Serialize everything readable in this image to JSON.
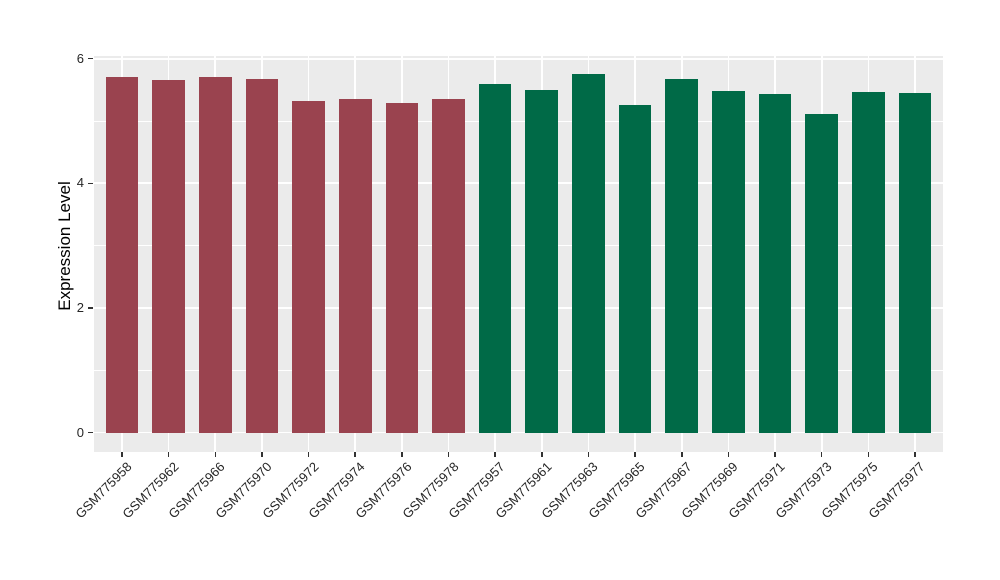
{
  "figure": {
    "background": "#FFFFFF",
    "panel_background": "#EBEBEB",
    "grid_color": "#FFFFFF",
    "tick_mark_color": "#333333",
    "axis_text_color": "#262626",
    "axis_title_color": "#000000"
  },
  "chart_data": {
    "type": "bar",
    "title": "",
    "xlabel": "",
    "ylabel": "Expression Level",
    "ylim": [
      0,
      6
    ],
    "yticks": [
      0,
      2,
      4,
      6
    ],
    "ytick_labels": [
      "0",
      "2",
      "4",
      "6"
    ],
    "minor_yticks": [
      1,
      3,
      5
    ],
    "grid": true,
    "legend_position": "none",
    "x_tick_angle": 45,
    "categories": [
      "GSM775958",
      "GSM775962",
      "GSM775966",
      "GSM775970",
      "GSM775972",
      "GSM775974",
      "GSM775976",
      "GSM775978",
      "GSM775957",
      "GSM775961",
      "GSM775963",
      "GSM775965",
      "GSM775967",
      "GSM775969",
      "GSM775971",
      "GSM775973",
      "GSM775975",
      "GSM775977"
    ],
    "values": [
      5.7,
      5.66,
      5.7,
      5.68,
      5.32,
      5.36,
      5.29,
      5.36,
      5.59,
      5.49,
      5.75,
      5.25,
      5.67,
      5.48,
      5.43,
      5.11,
      5.46,
      5.45
    ],
    "bar_colors": [
      "#9A434F",
      "#9A434F",
      "#9A434F",
      "#9A434F",
      "#9A434F",
      "#9A434F",
      "#9A434F",
      "#9A434F",
      "#006A47",
      "#006A47",
      "#006A47",
      "#006A47",
      "#006A47",
      "#006A47",
      "#006A47",
      "#006A47",
      "#006A47",
      "#006A47"
    ],
    "group_colors": {
      "left_group": "#9A434F",
      "right_group": "#006A47"
    }
  }
}
